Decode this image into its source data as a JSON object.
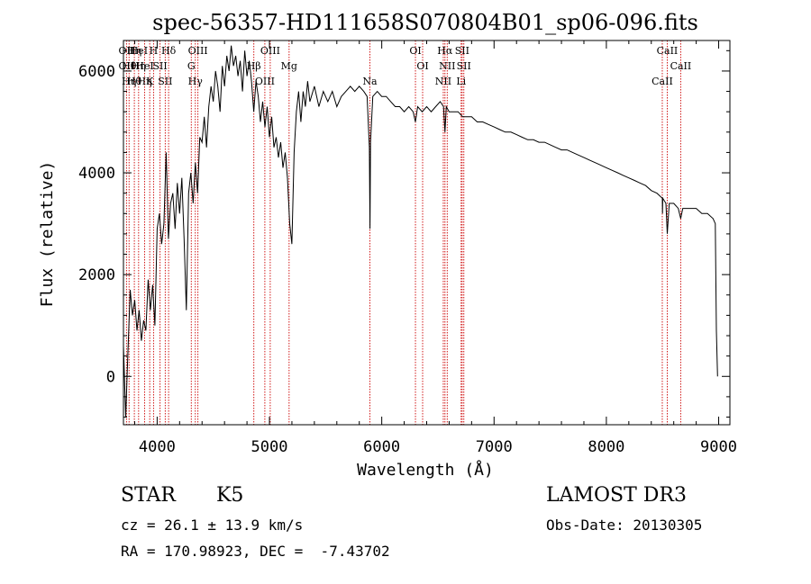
{
  "chart_data": {
    "type": "line",
    "title": "spec-56357-HD111658S070804B01_sp06-096.fits",
    "xlabel": "Wavelength (Å)",
    "ylabel": "Flux (relative)",
    "xlim": [
      3700,
      9100
    ],
    "ylim": [
      -950,
      6600
    ],
    "xticks": [
      4000,
      5000,
      6000,
      7000,
      8000,
      9000
    ],
    "yticks": [
      0,
      2000,
      4000,
      6000
    ],
    "series": [
      {
        "points": [
          [
            3700,
            600
          ],
          [
            3720,
            -800
          ],
          [
            3740,
            500
          ],
          [
            3760,
            1700
          ],
          [
            3780,
            1200
          ],
          [
            3800,
            1500
          ],
          [
            3820,
            900
          ],
          [
            3840,
            1300
          ],
          [
            3860,
            700
          ],
          [
            3880,
            1100
          ],
          [
            3900,
            900
          ],
          [
            3920,
            1900
          ],
          [
            3940,
            1300
          ],
          [
            3960,
            1800
          ],
          [
            3980,
            1000
          ],
          [
            4000,
            2900
          ],
          [
            4020,
            3200
          ],
          [
            4040,
            2600
          ],
          [
            4060,
            3000
          ],
          [
            4080,
            4400
          ],
          [
            4100,
            2700
          ],
          [
            4120,
            3400
          ],
          [
            4140,
            3600
          ],
          [
            4160,
            2900
          ],
          [
            4180,
            3800
          ],
          [
            4200,
            3200
          ],
          [
            4220,
            3900
          ],
          [
            4240,
            2700
          ],
          [
            4260,
            1300
          ],
          [
            4280,
            3600
          ],
          [
            4300,
            4000
          ],
          [
            4320,
            3400
          ],
          [
            4340,
            4200
          ],
          [
            4360,
            3600
          ],
          [
            4380,
            4700
          ],
          [
            4400,
            4600
          ],
          [
            4420,
            5100
          ],
          [
            4440,
            4500
          ],
          [
            4460,
            5300
          ],
          [
            4480,
            5700
          ],
          [
            4500,
            5400
          ],
          [
            4520,
            6000
          ],
          [
            4540,
            5700
          ],
          [
            4560,
            5200
          ],
          [
            4580,
            6100
          ],
          [
            4600,
            5700
          ],
          [
            4620,
            6300
          ],
          [
            4640,
            6000
          ],
          [
            4660,
            6500
          ],
          [
            4680,
            6100
          ],
          [
            4700,
            6300
          ],
          [
            4720,
            5900
          ],
          [
            4740,
            6200
          ],
          [
            4760,
            5600
          ],
          [
            4780,
            6400
          ],
          [
            4800,
            5900
          ],
          [
            4820,
            6200
          ],
          [
            4840,
            5800
          ],
          [
            4860,
            5200
          ],
          [
            4880,
            5800
          ],
          [
            4900,
            5500
          ],
          [
            4920,
            5000
          ],
          [
            4940,
            5400
          ],
          [
            4960,
            4900
          ],
          [
            4980,
            5300
          ],
          [
            5000,
            4700
          ],
          [
            5020,
            5100
          ],
          [
            5040,
            4500
          ],
          [
            5060,
            4700
          ],
          [
            5080,
            4300
          ],
          [
            5100,
            4600
          ],
          [
            5120,
            4100
          ],
          [
            5140,
            4400
          ],
          [
            5160,
            3900
          ],
          [
            5180,
            3000
          ],
          [
            5200,
            2600
          ],
          [
            5220,
            4400
          ],
          [
            5240,
            5200
          ],
          [
            5260,
            5600
          ],
          [
            5280,
            5000
          ],
          [
            5300,
            5600
          ],
          [
            5320,
            5300
          ],
          [
            5340,
            5800
          ],
          [
            5360,
            5400
          ],
          [
            5400,
            5700
          ],
          [
            5440,
            5300
          ],
          [
            5480,
            5600
          ],
          [
            5520,
            5400
          ],
          [
            5560,
            5600
          ],
          [
            5600,
            5300
          ],
          [
            5640,
            5500
          ],
          [
            5680,
            5600
          ],
          [
            5720,
            5700
          ],
          [
            5760,
            5600
          ],
          [
            5800,
            5700
          ],
          [
            5840,
            5600
          ],
          [
            5870,
            5500
          ],
          [
            5890,
            4500
          ],
          [
            5895,
            2900
          ],
          [
            5900,
            4600
          ],
          [
            5920,
            5500
          ],
          [
            5960,
            5600
          ],
          [
            6000,
            5500
          ],
          [
            6040,
            5500
          ],
          [
            6080,
            5400
          ],
          [
            6120,
            5300
          ],
          [
            6160,
            5300
          ],
          [
            6200,
            5200
          ],
          [
            6240,
            5300
          ],
          [
            6280,
            5200
          ],
          [
            6300,
            5000
          ],
          [
            6320,
            5300
          ],
          [
            6360,
            5200
          ],
          [
            6400,
            5300
          ],
          [
            6440,
            5200
          ],
          [
            6480,
            5300
          ],
          [
            6520,
            5400
          ],
          [
            6550,
            5300
          ],
          [
            6563,
            4800
          ],
          [
            6575,
            5300
          ],
          [
            6600,
            5200
          ],
          [
            6640,
            5200
          ],
          [
            6680,
            5200
          ],
          [
            6720,
            5100
          ],
          [
            6760,
            5100
          ],
          [
            6800,
            5100
          ],
          [
            6850,
            5000
          ],
          [
            6900,
            5000
          ],
          [
            6950,
            4950
          ],
          [
            7000,
            4900
          ],
          [
            7050,
            4850
          ],
          [
            7100,
            4800
          ],
          [
            7150,
            4800
          ],
          [
            7200,
            4750
          ],
          [
            7250,
            4700
          ],
          [
            7300,
            4650
          ],
          [
            7350,
            4650
          ],
          [
            7400,
            4600
          ],
          [
            7450,
            4600
          ],
          [
            7500,
            4550
          ],
          [
            7550,
            4500
          ],
          [
            7600,
            4450
          ],
          [
            7650,
            4450
          ],
          [
            7700,
            4400
          ],
          [
            7750,
            4350
          ],
          [
            7800,
            4300
          ],
          [
            7850,
            4250
          ],
          [
            7900,
            4200
          ],
          [
            7950,
            4150
          ],
          [
            8000,
            4100
          ],
          [
            8050,
            4050
          ],
          [
            8100,
            4000
          ],
          [
            8150,
            3950
          ],
          [
            8200,
            3900
          ],
          [
            8250,
            3850
          ],
          [
            8300,
            3800
          ],
          [
            8350,
            3750
          ],
          [
            8400,
            3650
          ],
          [
            8450,
            3600
          ],
          [
            8498,
            3500
          ],
          [
            8500,
            3200
          ],
          [
            8502,
            3500
          ],
          [
            8530,
            3400
          ],
          [
            8542,
            2800
          ],
          [
            8560,
            3400
          ],
          [
            8600,
            3400
          ],
          [
            8640,
            3300
          ],
          [
            8662,
            3100
          ],
          [
            8680,
            3300
          ],
          [
            8720,
            3300
          ],
          [
            8760,
            3300
          ],
          [
            8800,
            3300
          ],
          [
            8850,
            3200
          ],
          [
            8900,
            3200
          ],
          [
            8950,
            3100
          ],
          [
            8970,
            3000
          ],
          [
            8980,
            900
          ],
          [
            8990,
            0
          ]
        ]
      }
    ],
    "lines": [
      {
        "x": 3727,
        "labels": [
          "OII",
          "OII"
        ]
      },
      {
        "x": 3750,
        "labels": [
          "Hθ",
          "Hη"
        ]
      },
      {
        "x": 3797,
        "labels": [
          "Hθ",
          "Hη"
        ]
      },
      {
        "x": 3835,
        "labels": [
          "HeI",
          "Hη"
        ]
      },
      {
        "x": 3889,
        "labels": [
          "HeI",
          "Hη"
        ]
      },
      {
        "x": 3934,
        "labels": [
          "K"
        ]
      },
      {
        "x": 3968,
        "labels": [
          "H"
        ]
      },
      {
        "x": 4026,
        "labels": [
          "SII"
        ]
      },
      {
        "x": 4072,
        "labels": [
          "SII"
        ]
      },
      {
        "x": 4102,
        "labels": [
          "Hδ"
        ]
      },
      {
        "x": 4304,
        "labels": [
          "G"
        ]
      },
      {
        "x": 4340,
        "labels": [
          "Hγ"
        ]
      },
      {
        "x": 4363,
        "labels": [
          "OIII"
        ]
      },
      {
        "x": 4861,
        "labels": [
          "Hβ"
        ]
      },
      {
        "x": 4959,
        "labels": [
          "OIII"
        ]
      },
      {
        "x": 5007,
        "labels": [
          "OIII"
        ]
      },
      {
        "x": 5175,
        "labels": [
          "Mg"
        ]
      },
      {
        "x": 5894,
        "labels": [
          "Na"
        ]
      },
      {
        "x": 6300,
        "labels": [
          "OI"
        ]
      },
      {
        "x": 6364,
        "labels": [
          "OI"
        ]
      },
      {
        "x": 6548,
        "labels": [
          "NII"
        ]
      },
      {
        "x": 6563,
        "labels": [
          "Hα"
        ]
      },
      {
        "x": 6583,
        "labels": [
          "NII"
        ]
      },
      {
        "x": 6707,
        "labels": [
          "Li"
        ]
      },
      {
        "x": 6716,
        "labels": [
          "SII"
        ]
      },
      {
        "x": 6731,
        "labels": [
          "SII"
        ]
      },
      {
        "x": 8498,
        "labels": [
          "CaII"
        ]
      },
      {
        "x": 8542,
        "labels": [
          "CaII"
        ]
      },
      {
        "x": 8662,
        "labels": [
          "CaII"
        ]
      }
    ],
    "grid": false,
    "legend": false
  },
  "info": {
    "class_label": "STAR",
    "subclass": "K5",
    "survey": "LAMOST DR3",
    "cz": "cz = 26.1 ± 13.9 km/s",
    "obs_date": "Obs-Date: 20130305",
    "coords": "RA = 170.98923, DEC =  -7.43702"
  },
  "colors": {
    "spectrum": "#000000",
    "lines": "#cc0000",
    "frame": "#000000"
  }
}
